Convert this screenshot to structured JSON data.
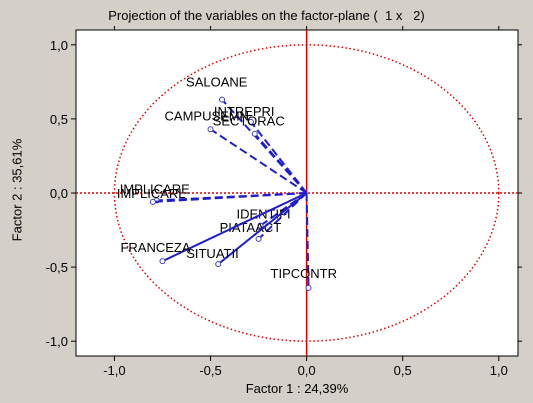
{
  "chart_data": {
    "type": "scatter",
    "title": "Projection of the variables on the factor-plane (  1 x   2)",
    "xlabel": "Factor 1 : 24,39%",
    "ylabel": "Factor 2 : 35,61%",
    "xlim": [
      -1.2,
      1.1
    ],
    "ylim": [
      -1.1,
      1.1
    ],
    "xticks": [
      "-1,0",
      "-0,5",
      "0,0",
      "0,5",
      "1,0"
    ],
    "xtick_values": [
      -1.0,
      -0.5,
      0.0,
      0.5,
      1.0
    ],
    "yticks": [
      "1,0",
      "0,5",
      "0,0",
      "-0,5",
      "-1,0"
    ],
    "ytick_values": [
      1.0,
      0.5,
      0.0,
      -0.5,
      -1.0
    ],
    "unit_circle": true,
    "grid": false,
    "points": [
      {
        "label": "SALOANE",
        "x": -0.44,
        "y": 0.63,
        "solid": false
      },
      {
        "label": "INTREPRI",
        "x": -0.29,
        "y": 0.48,
        "solid": false
      },
      {
        "label": "CAMPUSEMN",
        "x": -0.5,
        "y": 0.43,
        "solid": false
      },
      {
        "label": "SECTORAC",
        "x": -0.27,
        "y": 0.4,
        "solid": false
      },
      {
        "label": "IMPLICARE",
        "x": -0.78,
        "y": -0.05,
        "solid": false
      },
      {
        "label": "IMPLICARL",
        "x": -0.8,
        "y": -0.06,
        "solid": false
      },
      {
        "label": "IDENTIFI",
        "x": -0.24,
        "y": -0.22,
        "solid": false
      },
      {
        "label": "PIATAACT",
        "x": -0.25,
        "y": -0.31,
        "solid": false
      },
      {
        "label": "FRANCEZA",
        "x": -0.75,
        "y": -0.46,
        "solid": true
      },
      {
        "label": "SITUATII",
        "x": -0.46,
        "y": -0.48,
        "solid": true
      },
      {
        "label": "TIPCONTR",
        "x": 0.01,
        "y": -0.64,
        "solid": false
      }
    ],
    "colors": {
      "vectors": "#1f1fd1",
      "axes": "#e00000",
      "circle": "#e00000",
      "points": "#4040c8"
    }
  }
}
